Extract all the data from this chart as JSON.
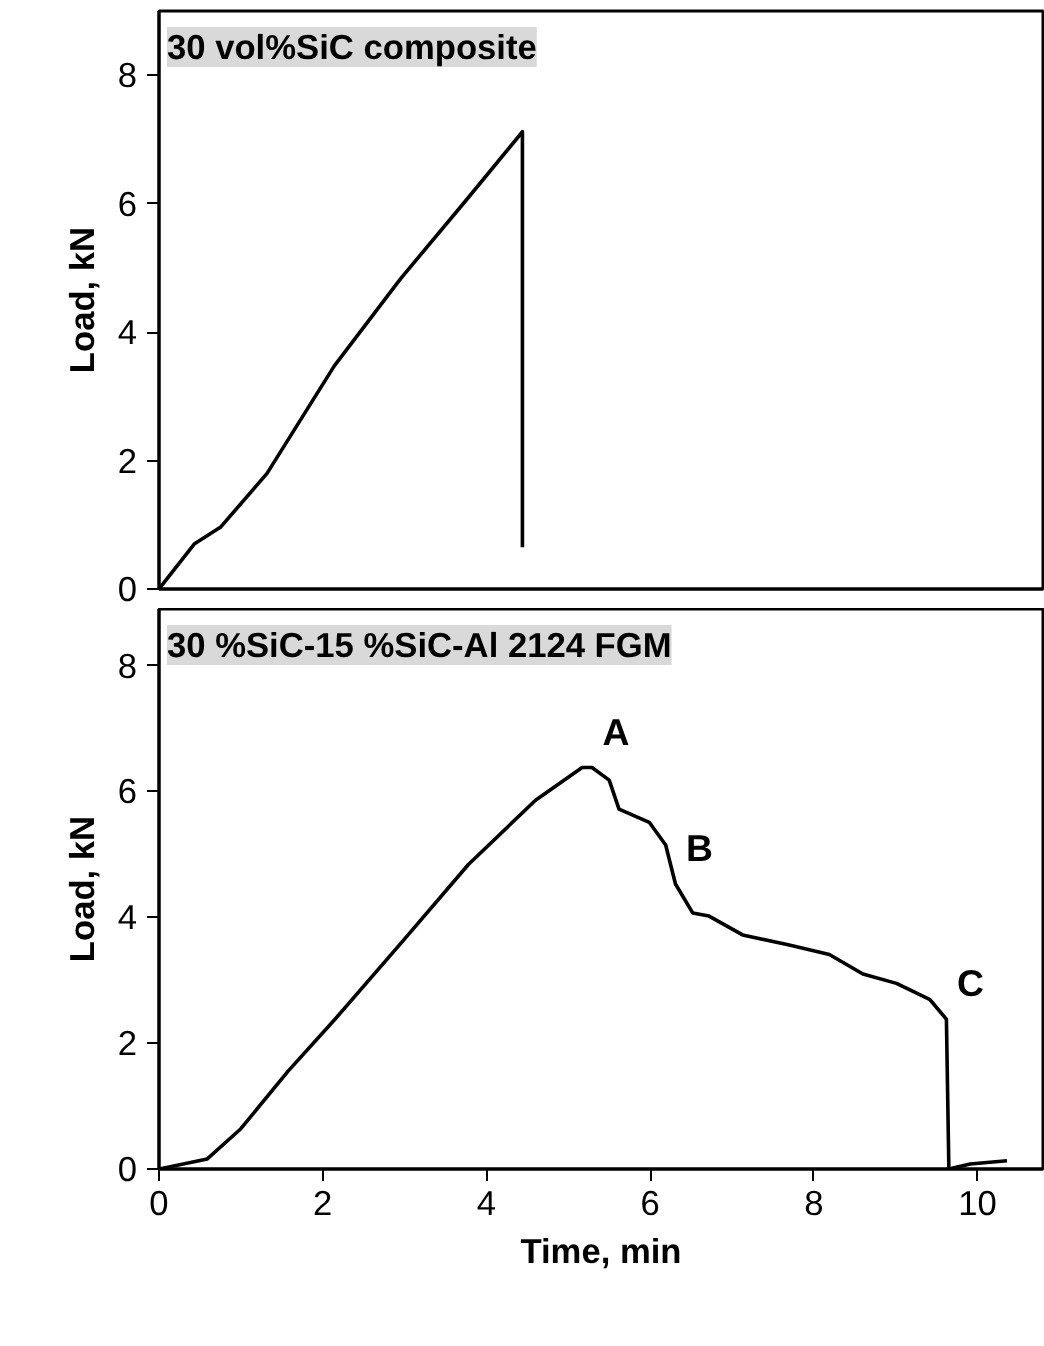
{
  "chart_data": [
    {
      "type": "line",
      "title": "30 vol%SiC composite",
      "ylabel": "Load, kN",
      "xlim": [
        0,
        10.8
      ],
      "ylim": [
        0,
        9
      ],
      "yticks": [
        0,
        2,
        4,
        6,
        8
      ],
      "tick_labels": "y",
      "grid": false,
      "series": [
        {
          "color": "#000000",
          "x": [
            0,
            0.43,
            0.75,
            1.32,
            2.14,
            2.95,
            3.77,
            4.44,
            4.44
          ],
          "values": [
            0,
            0.7,
            0.96,
            1.8,
            3.47,
            4.83,
            6.08,
            7.12,
            0.65
          ]
        }
      ]
    },
    {
      "type": "line",
      "title": "30 %SiC-15 %SiC-Al 2124 FGM",
      "xlabel": "Time, min",
      "ylabel": "Load, kN",
      "xlim": [
        0,
        10.8
      ],
      "ylim": [
        0,
        8.9
      ],
      "xticks": [
        0,
        2,
        4,
        6,
        8,
        10
      ],
      "yticks": [
        0,
        2,
        4,
        6,
        8
      ],
      "grid": false,
      "series": [
        {
          "color": "#000000",
          "x": [
            0,
            0.59,
            1.0,
            1.58,
            2.15,
            2.97,
            3.78,
            4.6,
            5.17,
            5.29,
            5.5,
            5.62,
            5.99,
            6.19,
            6.31,
            6.52,
            6.72,
            7.13,
            7.7,
            8.19,
            8.6,
            9.01,
            9.42,
            9.62,
            9.65,
            9.91,
            10.36
          ],
          "values": [
            0,
            0.16,
            0.64,
            1.56,
            2.38,
            3.61,
            4.84,
            5.86,
            6.38,
            6.38,
            6.18,
            5.72,
            5.51,
            5.15,
            4.53,
            4.07,
            4.02,
            3.72,
            3.56,
            3.41,
            3.1,
            2.95,
            2.69,
            2.38,
            0,
            0.08,
            0.13
          ]
        }
      ],
      "annotations": [
        {
          "text": "A",
          "x": 5.29,
          "y": 6.38
        },
        {
          "text": "B",
          "x": 6.31,
          "y": 4.53
        },
        {
          "text": "C",
          "x": 9.62,
          "y": 2.38
        }
      ]
    }
  ]
}
